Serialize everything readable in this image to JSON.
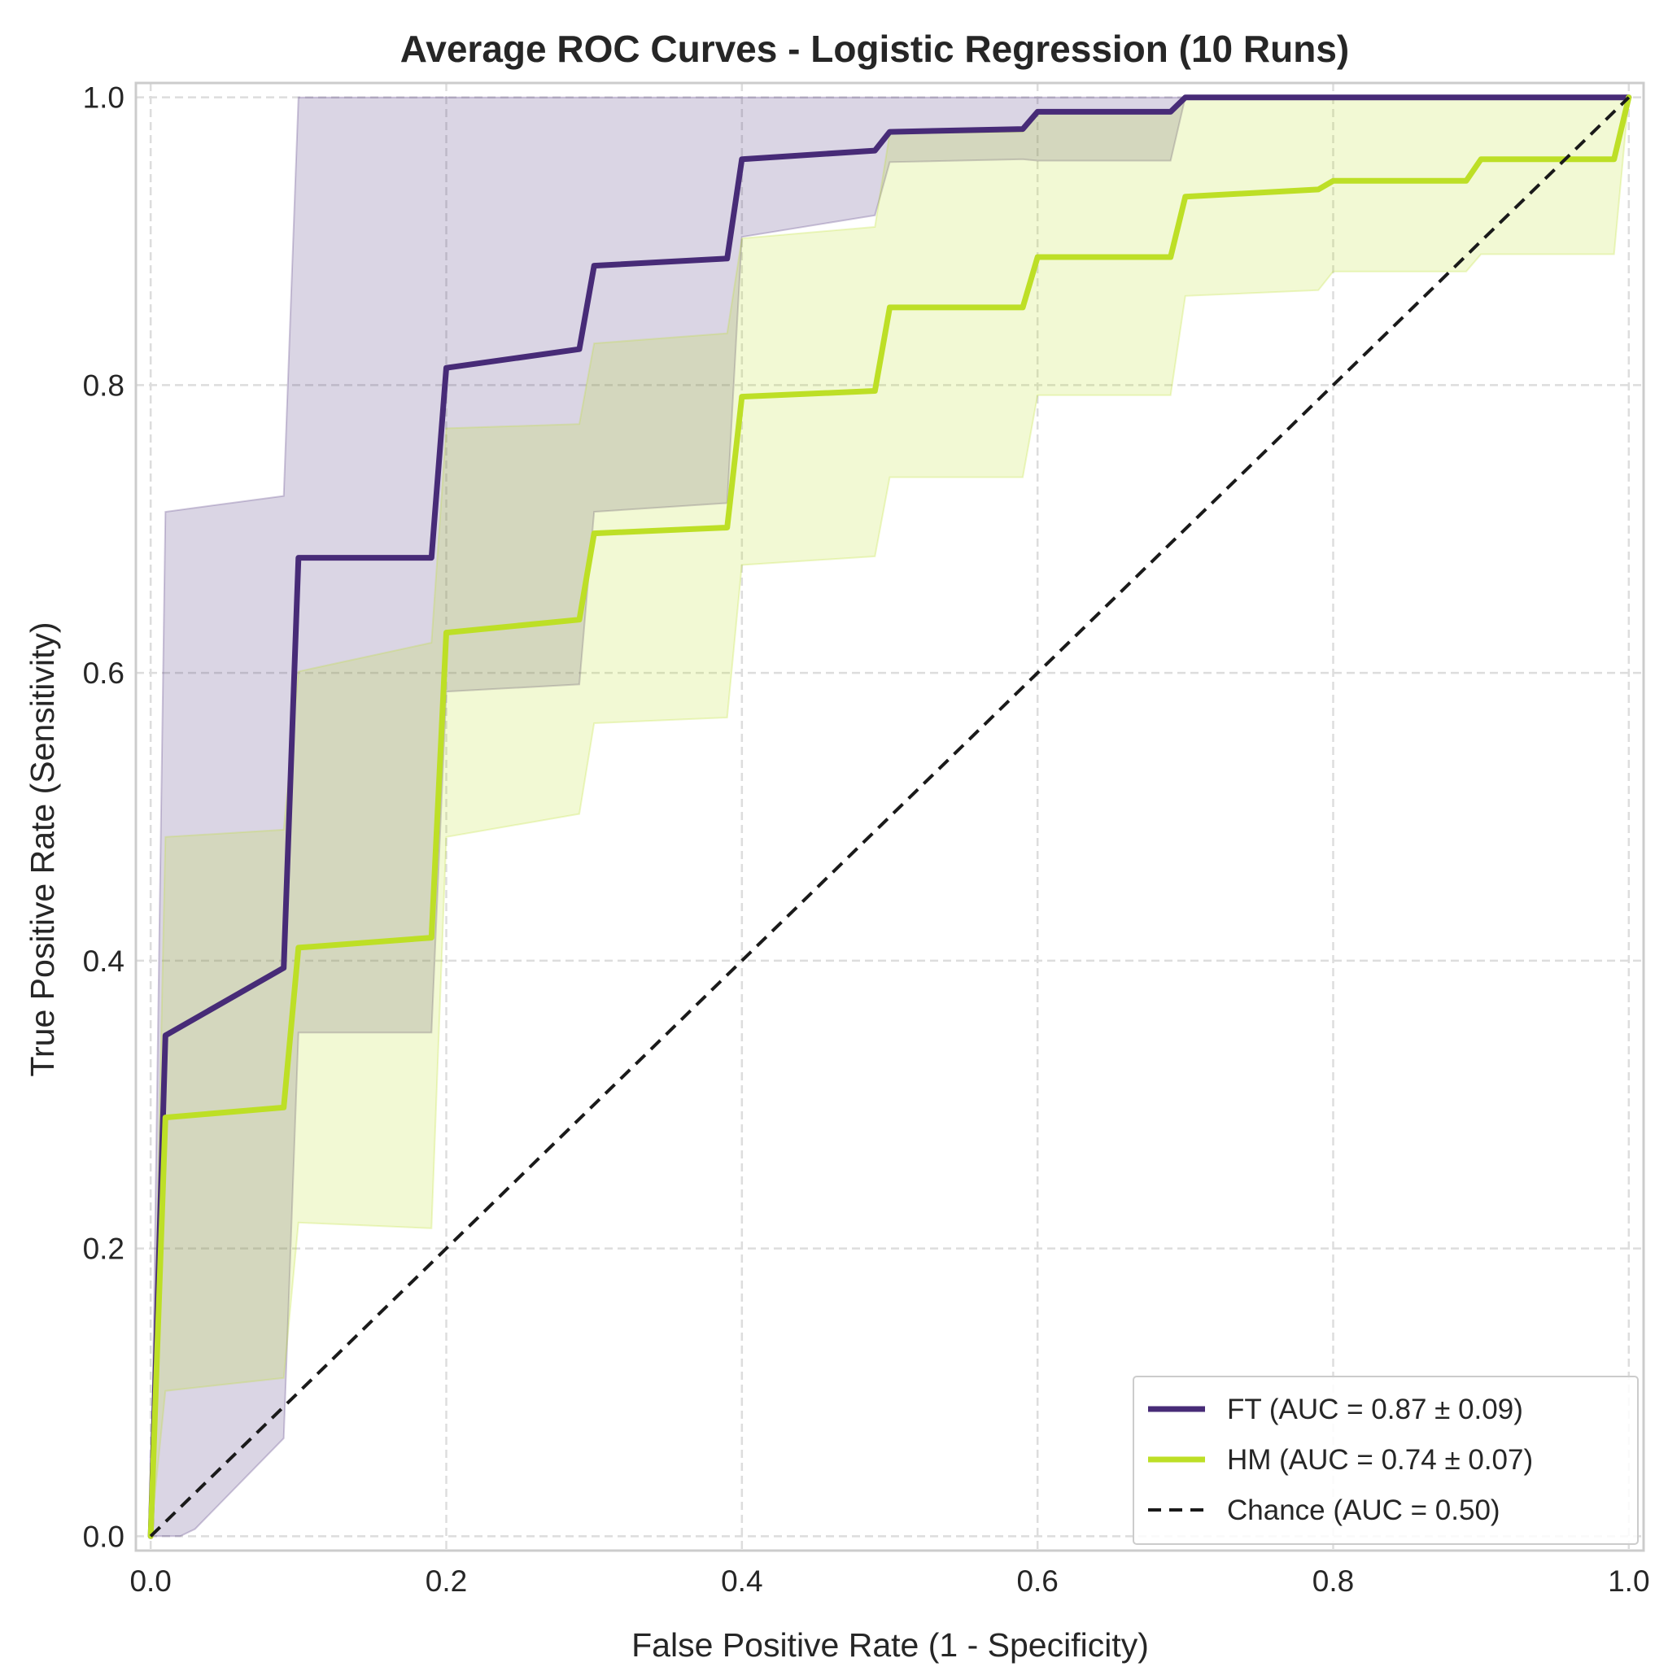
{
  "chart_data": {
    "type": "line",
    "title": "Average ROC Curves - Logistic Regression (10 Runs)",
    "xlabel": "False Positive Rate (1 - Specificity)",
    "ylabel": "True Positive Rate (Sensitivity)",
    "xlim": [
      -0.01,
      1.01
    ],
    "ylim": [
      -0.01,
      1.01
    ],
    "xticks": [
      "0.0",
      "0.2",
      "0.4",
      "0.6",
      "0.8",
      "1.0"
    ],
    "yticks": [
      "0.0",
      "0.2",
      "0.4",
      "0.6",
      "0.8",
      "1.0"
    ],
    "grid": true,
    "legend_position": "lower-right",
    "series": [
      {
        "name": "FT (AUC = 0.87 ± 0.09)",
        "color": "#472b77",
        "mean": [
          [
            0,
            0
          ],
          [
            0.01,
            0.348
          ],
          [
            0.09,
            0.395
          ],
          [
            0.1,
            0.68
          ],
          [
            0.19,
            0.68
          ],
          [
            0.2,
            0.812
          ],
          [
            0.29,
            0.825
          ],
          [
            0.3,
            0.883
          ],
          [
            0.39,
            0.888
          ],
          [
            0.4,
            0.957
          ],
          [
            0.49,
            0.963
          ],
          [
            0.5,
            0.976
          ],
          [
            0.59,
            0.978
          ],
          [
            0.6,
            0.99
          ],
          [
            0.69,
            0.99
          ],
          [
            0.7,
            1.0
          ],
          [
            1.0,
            1.0
          ]
        ],
        "upper": [
          [
            0,
            0
          ],
          [
            0.01,
            0.712
          ],
          [
            0.09,
            0.723
          ],
          [
            0.1,
            1.0
          ],
          [
            1.0,
            1.0
          ]
        ],
        "lower": [
          [
            0,
            0
          ],
          [
            0.01,
            0
          ],
          [
            0.02,
            0
          ],
          [
            0.03,
            0.005
          ],
          [
            0.09,
            0.068
          ],
          [
            0.1,
            0.35
          ],
          [
            0.19,
            0.35
          ],
          [
            0.2,
            0.587
          ],
          [
            0.29,
            0.592
          ],
          [
            0.3,
            0.712
          ],
          [
            0.39,
            0.718
          ],
          [
            0.4,
            0.903
          ],
          [
            0.49,
            0.918
          ],
          [
            0.5,
            0.955
          ],
          [
            0.59,
            0.957
          ],
          [
            0.6,
            0.956
          ],
          [
            0.69,
            0.956
          ],
          [
            0.7,
            1.0
          ],
          [
            1.0,
            1.0
          ]
        ]
      },
      {
        "name": "HM (AUC = 0.74 ± 0.07)",
        "color": "#bddf26",
        "mean": [
          [
            0,
            0
          ],
          [
            0.01,
            0.291
          ],
          [
            0.09,
            0.298
          ],
          [
            0.1,
            0.409
          ],
          [
            0.19,
            0.416
          ],
          [
            0.2,
            0.628
          ],
          [
            0.29,
            0.637
          ],
          [
            0.3,
            0.697
          ],
          [
            0.39,
            0.701
          ],
          [
            0.4,
            0.792
          ],
          [
            0.49,
            0.796
          ],
          [
            0.5,
            0.854
          ],
          [
            0.59,
            0.854
          ],
          [
            0.6,
            0.889
          ],
          [
            0.69,
            0.889
          ],
          [
            0.7,
            0.931
          ],
          [
            0.79,
            0.936
          ],
          [
            0.8,
            0.942
          ],
          [
            0.89,
            0.942
          ],
          [
            0.9,
            0.957
          ],
          [
            0.99,
            0.957
          ],
          [
            1.0,
            1.0
          ]
        ],
        "upper": [
          [
            0,
            0
          ],
          [
            0.01,
            0.486
          ],
          [
            0.09,
            0.491
          ],
          [
            0.1,
            0.601
          ],
          [
            0.19,
            0.621
          ],
          [
            0.2,
            0.77
          ],
          [
            0.29,
            0.773
          ],
          [
            0.3,
            0.829
          ],
          [
            0.39,
            0.836
          ],
          [
            0.4,
            0.902
          ],
          [
            0.49,
            0.91
          ],
          [
            0.5,
            0.975
          ],
          [
            0.59,
            0.976
          ],
          [
            0.6,
            0.99
          ],
          [
            0.69,
            0.99
          ],
          [
            0.7,
            1.0
          ],
          [
            1.0,
            1.0
          ]
        ],
        "lower": [
          [
            0,
            0
          ],
          [
            0.01,
            0.101
          ],
          [
            0.09,
            0.11
          ],
          [
            0.1,
            0.218
          ],
          [
            0.19,
            0.214
          ],
          [
            0.2,
            0.486
          ],
          [
            0.29,
            0.502
          ],
          [
            0.3,
            0.565
          ],
          [
            0.39,
            0.569
          ],
          [
            0.4,
            0.675
          ],
          [
            0.49,
            0.681
          ],
          [
            0.5,
            0.736
          ],
          [
            0.59,
            0.736
          ],
          [
            0.6,
            0.793
          ],
          [
            0.69,
            0.793
          ],
          [
            0.7,
            0.862
          ],
          [
            0.79,
            0.866
          ],
          [
            0.8,
            0.879
          ],
          [
            0.89,
            0.879
          ],
          [
            0.9,
            0.891
          ],
          [
            0.99,
            0.891
          ],
          [
            1.0,
            1.0
          ]
        ]
      },
      {
        "name": "Chance (AUC = 0.50)",
        "color": "#1a1a1a",
        "dashed": true,
        "mean": [
          [
            0,
            0
          ],
          [
            1,
            1
          ]
        ]
      }
    ]
  }
}
